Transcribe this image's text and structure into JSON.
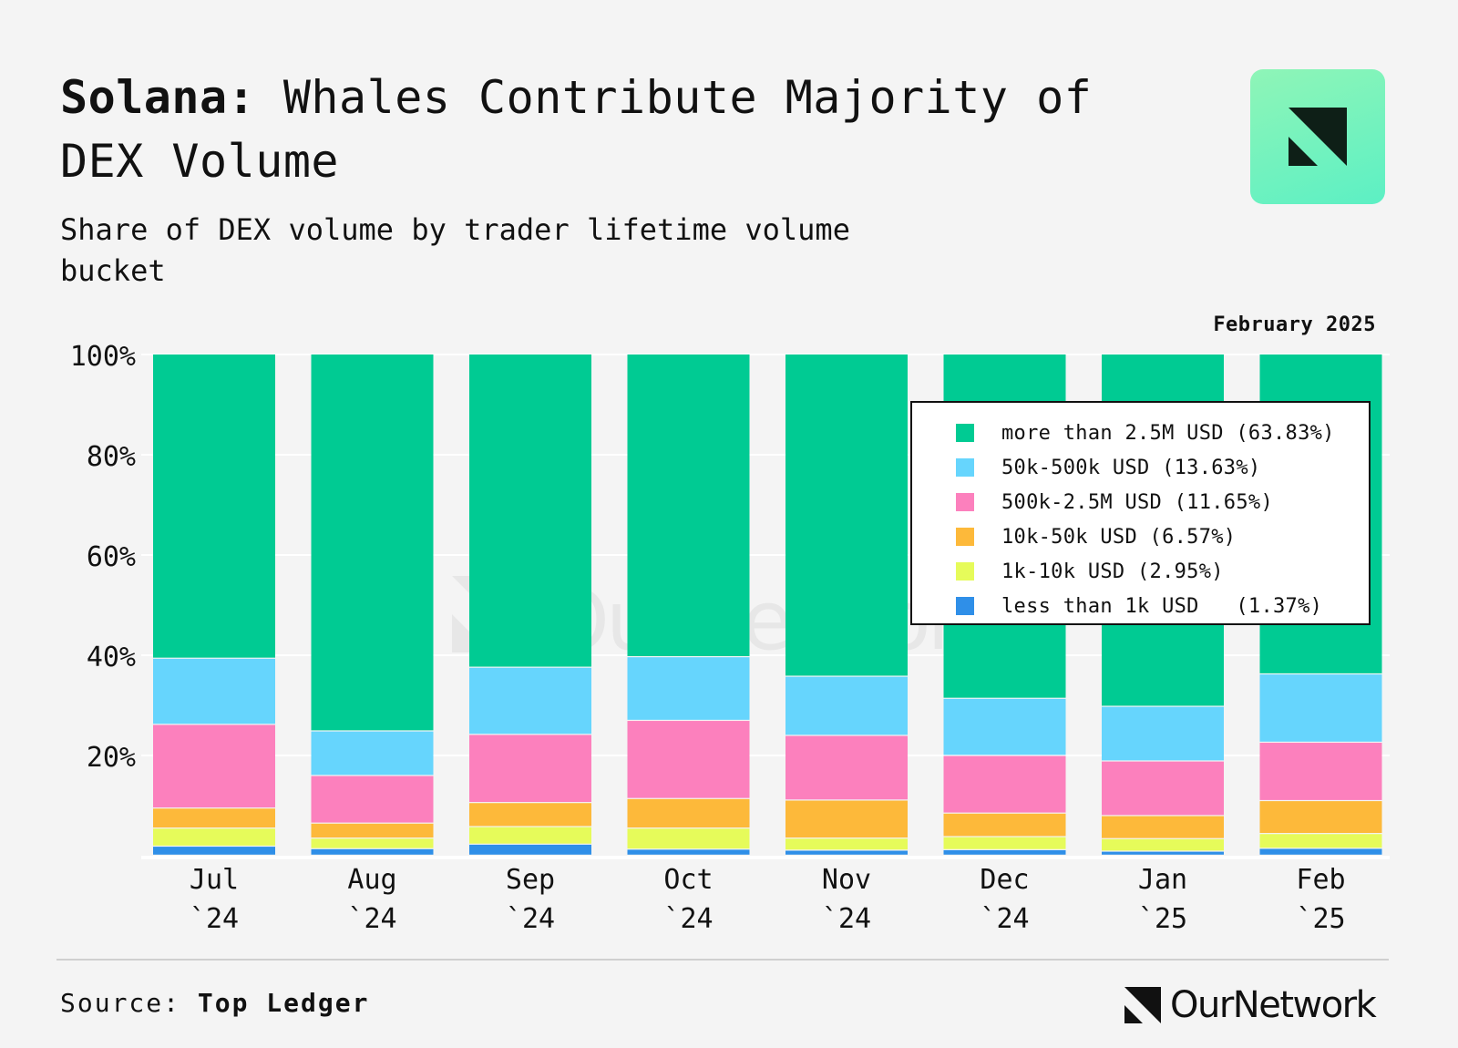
{
  "title": {
    "bold": "Solana:",
    "rest": "Whales Contribute Majority of DEX Volume"
  },
  "subtitle": "Share of DEX volume by trader lifetime volume bucket",
  "date_label": "February 2025",
  "source": {
    "label": "Source:",
    "value": "Top Ledger"
  },
  "brand": {
    "name": "OurNetwork",
    "watermark": "OurNetwork"
  },
  "colors": {
    "background": "#f4f4f4",
    "grid": "#ffffff",
    "logo_gradient_top": "#8ff5b7",
    "logo_gradient_bottom": "#5cf0c4",
    "logo_mark": "#0e1f17"
  },
  "chart_data": {
    "type": "bar",
    "stacked": true,
    "title": "Solana: Whales Contribute Majority of DEX Volume",
    "subtitle": "Share of DEX volume by trader lifetime volume bucket",
    "categories": [
      "Jul\n`24",
      "Aug\n`24",
      "Sep\n`24",
      "Oct\n`24",
      "Nov\n`24",
      "Dec\n`24",
      "Jan\n`25",
      "Feb\n`25"
    ],
    "category_lines": [
      [
        "Jul",
        "`24"
      ],
      [
        "Aug",
        "`24"
      ],
      [
        "Sep",
        "`24"
      ],
      [
        "Oct",
        "`24"
      ],
      [
        "Nov",
        "`24"
      ],
      [
        "Dec",
        "`24"
      ],
      [
        "Jan",
        "`25"
      ],
      [
        "Feb",
        "`25"
      ]
    ],
    "ylim": [
      0,
      100
    ],
    "yticks": [
      20,
      40,
      60,
      80,
      100
    ],
    "ytick_labels": [
      "20%",
      "40%",
      "60%",
      "80%",
      "100%"
    ],
    "xlabel": "",
    "ylabel": "",
    "grid": true,
    "legend_position": "top-right",
    "series": [
      {
        "name": "less than 1k USD",
        "legend_label": "less than 1k USD   (1.37%)",
        "color": "#2f8fe8",
        "values": [
          1.8,
          1.3,
          2.2,
          1.2,
          1.0,
          1.1,
          0.8,
          1.37
        ]
      },
      {
        "name": "1k-10k USD",
        "legend_label": "1k-10k USD (2.95%)",
        "color": "#e6fb5a",
        "values": [
          3.6,
          2.1,
          3.5,
          4.2,
          2.4,
          2.6,
          2.5,
          2.95
        ]
      },
      {
        "name": "10k-50k USD",
        "legend_label": "10k-50k USD (6.57%)",
        "color": "#fdb93a",
        "values": [
          4.0,
          3.0,
          4.8,
          5.9,
          7.6,
          4.7,
          4.6,
          6.57
        ]
      },
      {
        "name": "500k-2.5M USD",
        "legend_label": "500k-2.5M USD (11.65%)",
        "color": "#fc80bd",
        "values": [
          16.7,
          9.5,
          13.6,
          15.6,
          12.9,
          11.5,
          10.9,
          11.65
        ]
      },
      {
        "name": "50k-500k USD",
        "legend_label": "50k-500k USD (13.63%)",
        "color": "#66d5fd",
        "values": [
          13.2,
          8.9,
          13.4,
          12.7,
          11.8,
          11.4,
          10.9,
          13.63
        ]
      },
      {
        "name": "more than 2.5M USD",
        "legend_label": "more than 2.5M USD (63.83%)",
        "color": "#00cb93",
        "values": [
          60.7,
          75.2,
          62.5,
          60.4,
          64.3,
          68.7,
          70.3,
          63.83
        ]
      }
    ]
  }
}
